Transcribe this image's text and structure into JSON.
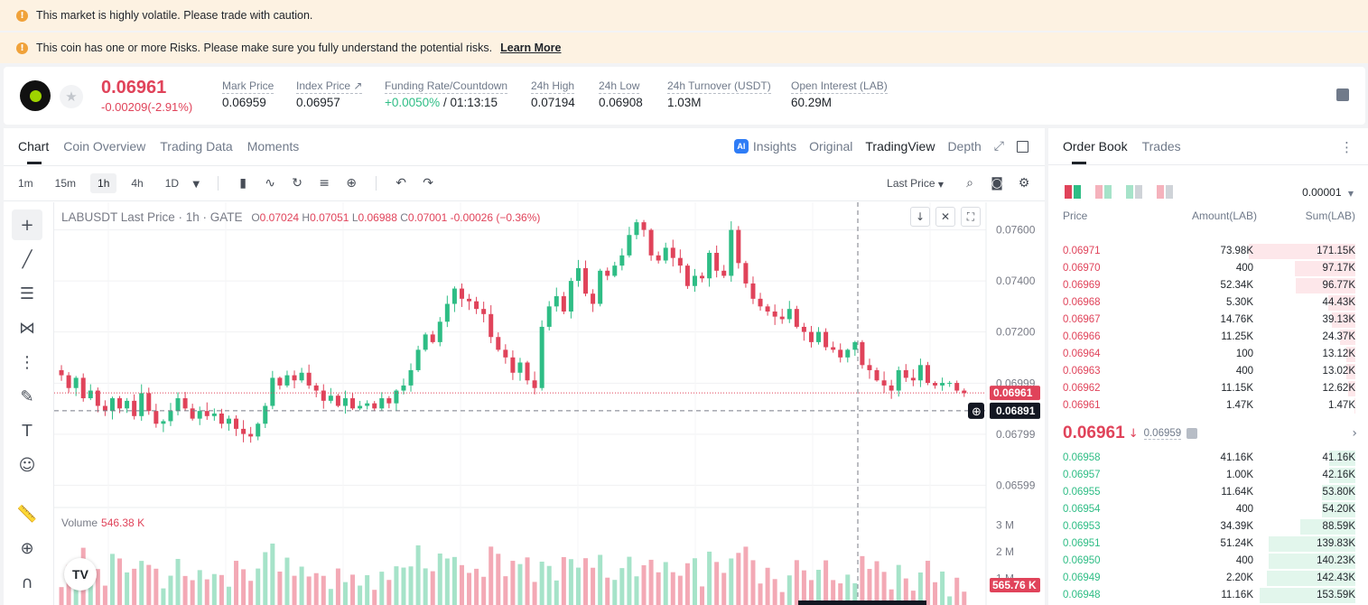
{
  "banners": [
    {
      "text": "This market is highly volatile. Please trade with caution.",
      "link": ""
    },
    {
      "text": "This coin has one or more Risks. Please make sure you fully understand the potential risks.",
      "link": "Learn More"
    }
  ],
  "ticker": {
    "last_price": "0.06961",
    "change": "-0.00209(-2.91%)",
    "stats": [
      {
        "label": "Mark Price",
        "value": "0.06959"
      },
      {
        "label": "Index Price ↗",
        "value": "0.06957"
      },
      {
        "label": "Funding Rate/Countdown",
        "value_green": "+0.0050%",
        "value": " / 01:13:15"
      },
      {
        "label": "24h High",
        "value": "0.07194"
      },
      {
        "label": "24h Low",
        "value": "0.06908"
      },
      {
        "label": "24h Turnover (USDT)",
        "value": "1.03M"
      },
      {
        "label": "Open Interest (LAB)",
        "value": "60.29M"
      }
    ]
  },
  "chart_tabs": [
    "Chart",
    "Coin Overview",
    "Trading Data",
    "Moments"
  ],
  "chart_views": {
    "insights": "Insights",
    "original": "Original",
    "tradingview": "TradingView",
    "depth": "Depth",
    "ai_badge": "AI"
  },
  "intervals": [
    "1m",
    "15m",
    "1h",
    "4h",
    "1D"
  ],
  "toolbar": {
    "price_type": "Last Price"
  },
  "legend": {
    "symbol": "LABUSDT Last Price · 1h · GATE",
    "o": "0.07024",
    "h": "0.07051",
    "l": "0.06988",
    "c": "0.07001",
    "chg": "-0.00026 (−0.36%)"
  },
  "volume": {
    "label": "Volume",
    "value": "546.38 K"
  },
  "colors": {
    "up": "#2ebd85",
    "down": "#e0435a",
    "up_vol": "#a6e3c9",
    "down_vol": "#f3a9b5"
  },
  "chart_data": {
    "type": "candlestick",
    "interval": "1h",
    "ylim": [
      0.0654,
      0.0768
    ],
    "y_ticks": [
      "0.07600",
      "0.07400",
      "0.07200",
      "0.06999",
      "0.06799",
      "0.06599"
    ],
    "vol_ticks": [
      "3 M",
      "2 M",
      "1 M"
    ],
    "vol_max": 3600000,
    "price_label": "0.06961",
    "crosshair_label": "0.06891",
    "vol_label": "565.76 K",
    "close": [
      0.0703,
      0.0698,
      0.0702,
      0.0694,
      0.0697,
      0.0691,
      0.0689,
      0.0694,
      0.069,
      0.0693,
      0.0687,
      0.0696,
      0.0689,
      0.0684,
      0.0685,
      0.0689,
      0.0694,
      0.069,
      0.0686,
      0.0689,
      0.0687,
      0.0688,
      0.0684,
      0.0686,
      0.0682,
      0.068,
      0.0679,
      0.0684,
      0.0691,
      0.0702,
      0.0699,
      0.0703,
      0.0701,
      0.0704,
      0.0699,
      0.0697,
      0.0693,
      0.0695,
      0.0691,
      0.0694,
      0.069,
      0.0691,
      0.0692,
      0.069,
      0.0694,
      0.0692,
      0.0697,
      0.0699,
      0.0705,
      0.0713,
      0.0719,
      0.0716,
      0.0724,
      0.0731,
      0.0737,
      0.0733,
      0.0732,
      0.0729,
      0.0727,
      0.0718,
      0.0713,
      0.071,
      0.0704,
      0.0708,
      0.0701,
      0.0698,
      0.0722,
      0.073,
      0.0734,
      0.0728,
      0.074,
      0.0745,
      0.0735,
      0.0731,
      0.0744,
      0.0742,
      0.0746,
      0.075,
      0.0758,
      0.0763,
      0.076,
      0.075,
      0.0748,
      0.0753,
      0.0749,
      0.0746,
      0.0738,
      0.0742,
      0.0741,
      0.0751,
      0.0744,
      0.0742,
      0.076,
      0.0747,
      0.0739,
      0.0733,
      0.073,
      0.0728,
      0.0726,
      0.0725,
      0.0729,
      0.0722,
      0.072,
      0.0716,
      0.072,
      0.0714,
      0.0713,
      0.071,
      0.0713,
      0.0716,
      0.0707,
      0.0705,
      0.0701,
      0.0699,
      0.0697,
      0.0705,
      0.0702,
      0.0701,
      0.0707,
      0.07,
      0.0699,
      0.07,
      0.07,
      0.0697,
      0.0696
    ]
  },
  "orderbook": {
    "tabs": [
      "Order Book",
      "Trades"
    ],
    "precision": "0.00001",
    "headers": {
      "price": "Price",
      "amount": "Amount(LAB)",
      "sum": "Sum(LAB)"
    },
    "asks": [
      {
        "price": "0.06971",
        "amount": "73.98K",
        "sum": "171.15K",
        "depth": 0.98
      },
      {
        "price": "0.06970",
        "amount": "400",
        "sum": "97.17K",
        "depth": 0.56
      },
      {
        "price": "0.06969",
        "amount": "52.34K",
        "sum": "96.77K",
        "depth": 0.55
      },
      {
        "price": "0.06968",
        "amount": "5.30K",
        "sum": "44.43K",
        "depth": 0.25
      },
      {
        "price": "0.06967",
        "amount": "14.76K",
        "sum": "39.13K",
        "depth": 0.22
      },
      {
        "price": "0.06966",
        "amount": "11.25K",
        "sum": "24.37K",
        "depth": 0.14
      },
      {
        "price": "0.06964",
        "amount": "100",
        "sum": "13.12K",
        "depth": 0.08
      },
      {
        "price": "0.06963",
        "amount": "400",
        "sum": "13.02K",
        "depth": 0.08
      },
      {
        "price": "0.06962",
        "amount": "11.15K",
        "sum": "12.62K",
        "depth": 0.07
      },
      {
        "price": "0.06961",
        "amount": "1.47K",
        "sum": "1.47K",
        "depth": 0.01
      }
    ],
    "mid": {
      "price": "0.06961",
      "arrow": "↓",
      "mark": "0.06959"
    },
    "bids": [
      {
        "price": "0.06958",
        "amount": "41.16K",
        "sum": "41.16K",
        "depth": 0.24
      },
      {
        "price": "0.06957",
        "amount": "1.00K",
        "sum": "42.16K",
        "depth": 0.24
      },
      {
        "price": "0.06955",
        "amount": "11.64K",
        "sum": "53.80K",
        "depth": 0.31
      },
      {
        "price": "0.06954",
        "amount": "400",
        "sum": "54.20K",
        "depth": 0.31
      },
      {
        "price": "0.06953",
        "amount": "34.39K",
        "sum": "88.59K",
        "depth": 0.51
      },
      {
        "price": "0.06951",
        "amount": "51.24K",
        "sum": "139.83K",
        "depth": 0.8
      },
      {
        "price": "0.06950",
        "amount": "400",
        "sum": "140.23K",
        "depth": 0.8
      },
      {
        "price": "0.06949",
        "amount": "2.20K",
        "sum": "142.43K",
        "depth": 0.82
      },
      {
        "price": "0.06948",
        "amount": "11.16K",
        "sum": "153.59K",
        "depth": 0.88
      }
    ]
  }
}
